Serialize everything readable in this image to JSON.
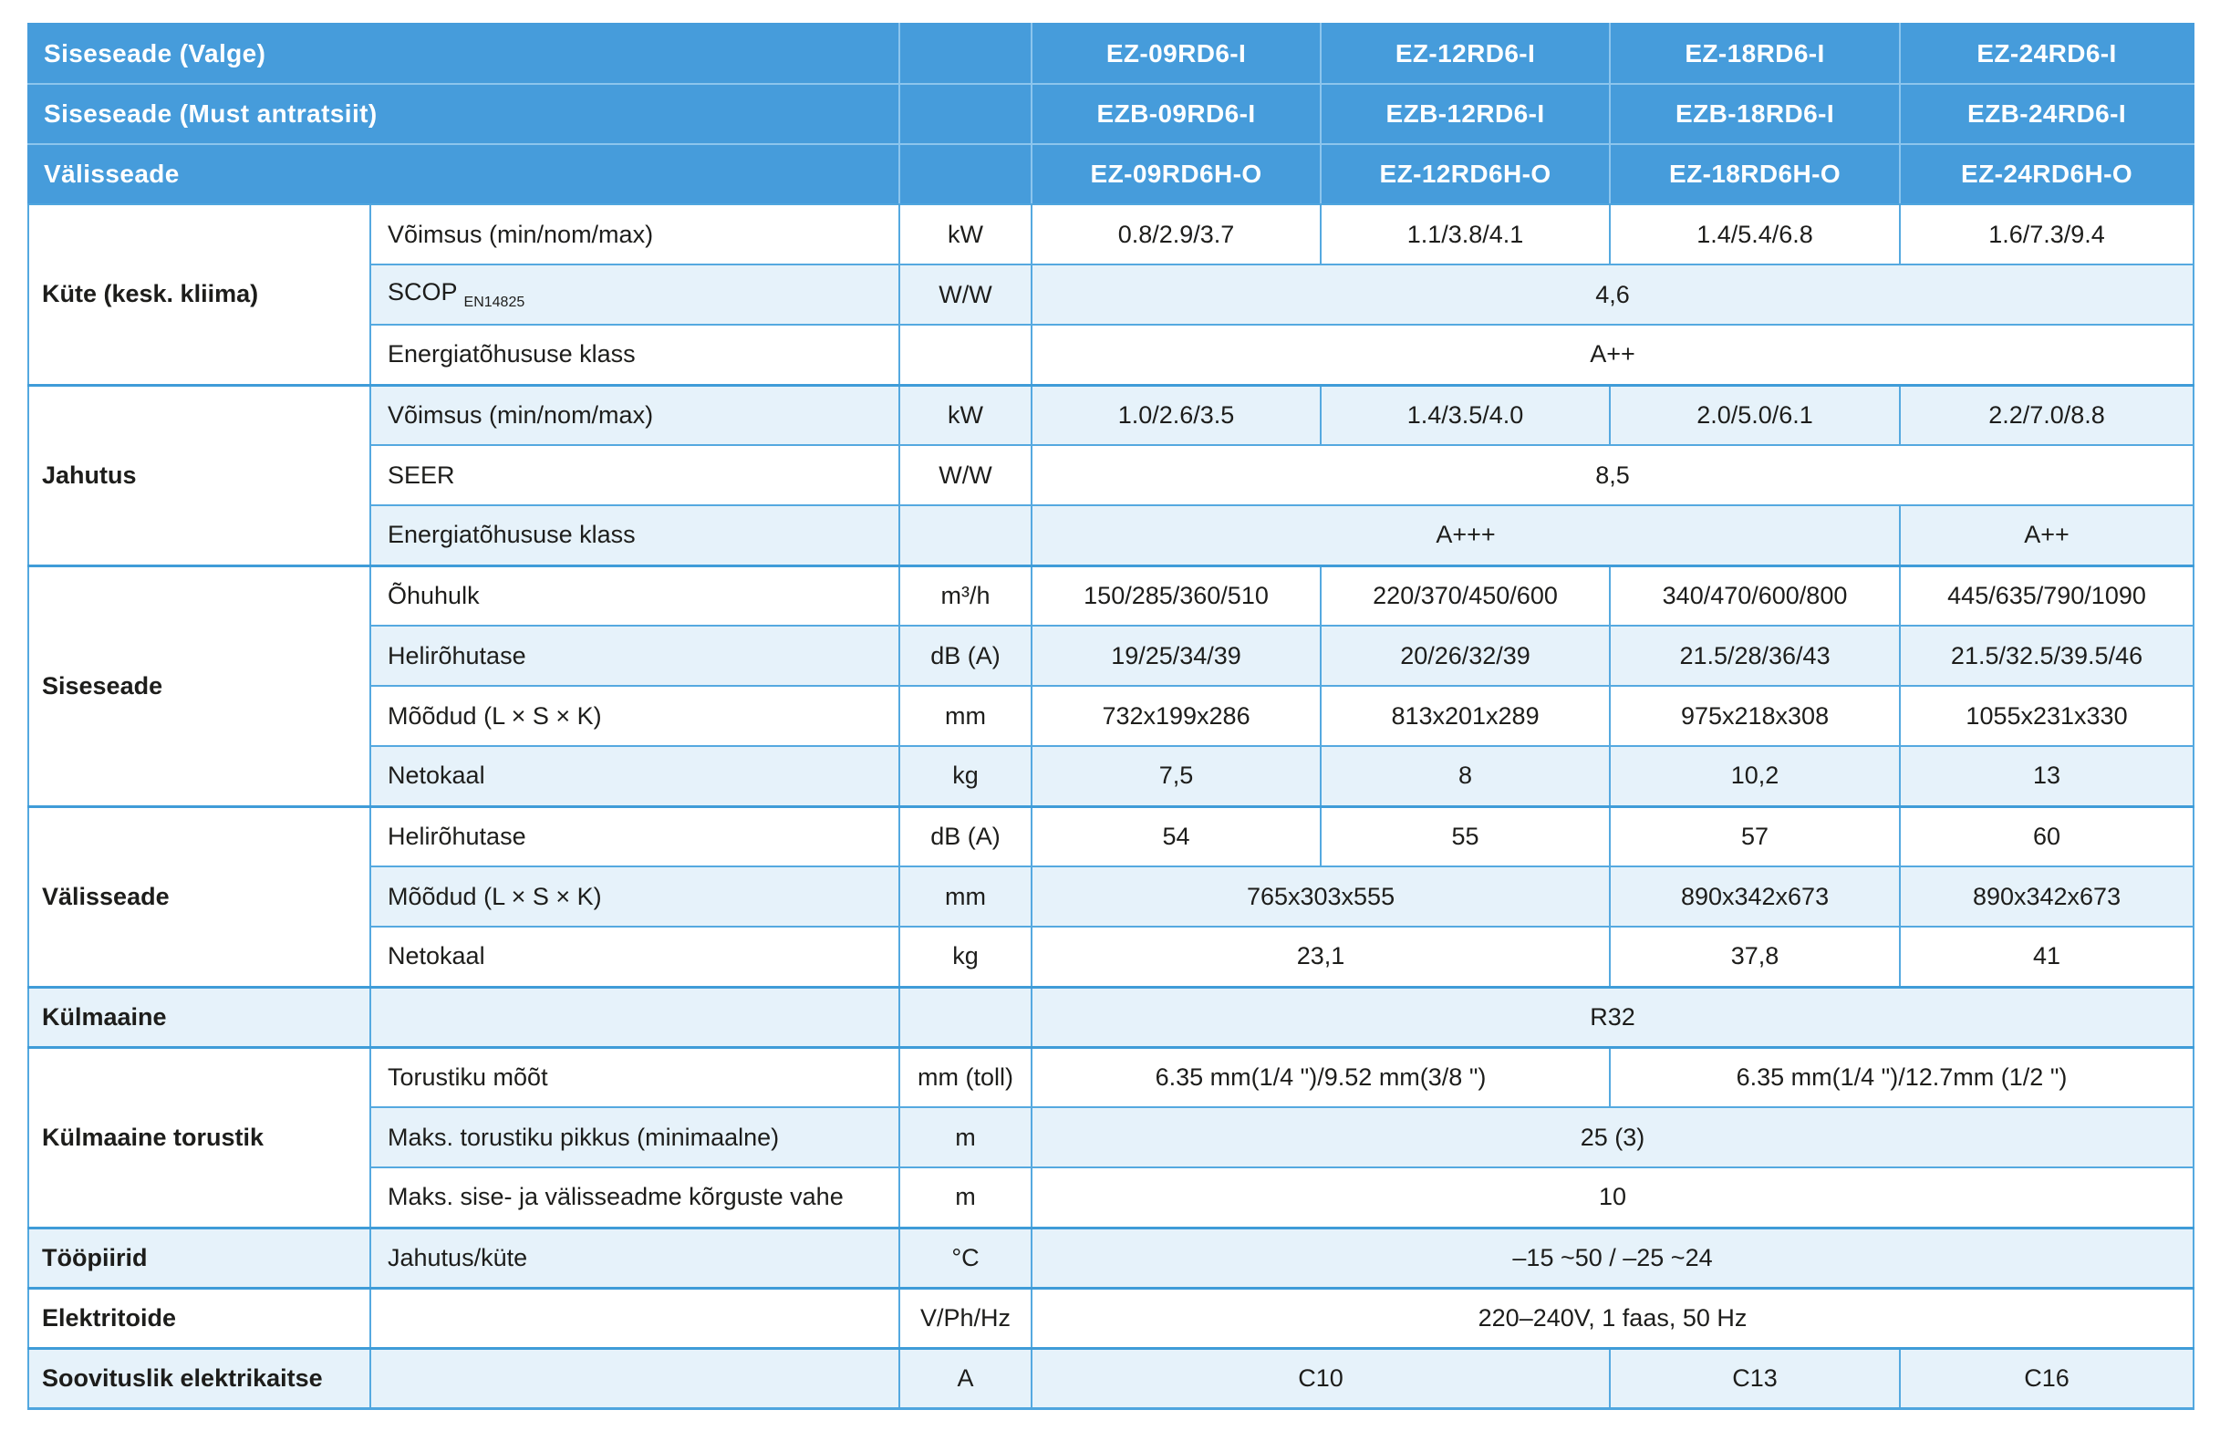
{
  "colors": {
    "header_blue": "#469CDB",
    "row_light_blue": "#E6F2FA",
    "border_blue": "#55A9E0",
    "header_divider": "#8CC5ED",
    "text": "#1d1d1b"
  },
  "header": {
    "rows": [
      {
        "label": "Siseseade (Valge)",
        "models": [
          "EZ-09RD6-I",
          "EZ-12RD6-I",
          "EZ-18RD6-I",
          "EZ-24RD6-I"
        ]
      },
      {
        "label": "Siseseade (Must antratsiit)",
        "models": [
          "EZB-09RD6-I",
          "EZB-12RD6-I",
          "EZB-18RD6-I",
          "EZB-24RD6-I"
        ]
      },
      {
        "label": "Välisseade",
        "models": [
          "EZ-09RD6H-O",
          "EZ-12RD6H-O",
          "EZ-18RD6H-O",
          "EZ-24RD6H-O"
        ]
      }
    ]
  },
  "table": {
    "rows": [
      {
        "bg": "white",
        "cells": [
          {
            "t": "Küte (kesk. kliima)",
            "type": "category",
            "rowspan": 3
          },
          {
            "t": "Võimsus (min/nom/max)",
            "type": "sublabel"
          },
          {
            "t": "kW",
            "type": "unit"
          },
          {
            "t": "0.8/2.9/3.7"
          },
          {
            "t": "1.1/3.8/4.1"
          },
          {
            "t": "1.4/5.4/6.8"
          },
          {
            "t": "1.6/7.3/9.4"
          }
        ]
      },
      {
        "bg": "blue",
        "cells": [
          {
            "t": "SCOP",
            "sub": "EN14825",
            "type": "sublabel"
          },
          {
            "t": "W/W",
            "type": "unit"
          },
          {
            "t": "4,6",
            "colspan": 4
          }
        ]
      },
      {
        "bg": "white",
        "cells": [
          {
            "t": "Energiatõhususe klass",
            "type": "sublabel"
          },
          {
            "t": "",
            "type": "unit"
          },
          {
            "t": "A++",
            "colspan": 4
          }
        ]
      },
      {
        "bg": "blue",
        "section": true,
        "cells": [
          {
            "t": "Jahutus",
            "type": "category",
            "rowspan": 3
          },
          {
            "t": "Võimsus (min/nom/max)",
            "type": "sublabel"
          },
          {
            "t": "kW",
            "type": "unit"
          },
          {
            "t": "1.0/2.6/3.5"
          },
          {
            "t": "1.4/3.5/4.0"
          },
          {
            "t": "2.0/5.0/6.1"
          },
          {
            "t": "2.2/7.0/8.8"
          }
        ]
      },
      {
        "bg": "white",
        "cells": [
          {
            "t": "SEER",
            "type": "sublabel"
          },
          {
            "t": "W/W",
            "type": "unit"
          },
          {
            "t": "8,5",
            "colspan": 4
          }
        ]
      },
      {
        "bg": "blue",
        "cells": [
          {
            "t": "Energiatõhususe klass",
            "type": "sublabel"
          },
          {
            "t": "",
            "type": "unit"
          },
          {
            "t": "A+++",
            "colspan": 3
          },
          {
            "t": "A++"
          }
        ]
      },
      {
        "bg": "white",
        "section": true,
        "cells": [
          {
            "t": "Siseseade",
            "type": "category",
            "rowspan": 4
          },
          {
            "t": "Õhuhulk",
            "type": "sublabel"
          },
          {
            "t": "m³/h",
            "type": "unit"
          },
          {
            "t": "150/285/360/510"
          },
          {
            "t": "220/370/450/600"
          },
          {
            "t": "340/470/600/800"
          },
          {
            "t": "445/635/790/1090"
          }
        ]
      },
      {
        "bg": "blue",
        "cells": [
          {
            "t": "Helirõhutase",
            "type": "sublabel"
          },
          {
            "t": "dB (A)",
            "type": "unit"
          },
          {
            "t": "19/25/34/39"
          },
          {
            "t": "20/26/32/39"
          },
          {
            "t": "21.5/28/36/43"
          },
          {
            "t": "21.5/32.5/39.5/46"
          }
        ]
      },
      {
        "bg": "white",
        "cells": [
          {
            "t": "Mõõdud (L × S × K)",
            "type": "sublabel"
          },
          {
            "t": "mm",
            "type": "unit"
          },
          {
            "t": "732x199x286"
          },
          {
            "t": "813x201x289"
          },
          {
            "t": "975x218x308"
          },
          {
            "t": "1055x231x330"
          }
        ]
      },
      {
        "bg": "blue",
        "cells": [
          {
            "t": "Netokaal",
            "type": "sublabel"
          },
          {
            "t": "kg",
            "type": "unit"
          },
          {
            "t": "7,5"
          },
          {
            "t": "8"
          },
          {
            "t": "10,2"
          },
          {
            "t": "13"
          }
        ]
      },
      {
        "bg": "white",
        "section": true,
        "cells": [
          {
            "t": "Välisseade",
            "type": "category",
            "rowspan": 3
          },
          {
            "t": "Helirõhutase",
            "type": "sublabel"
          },
          {
            "t": "dB (A)",
            "type": "unit"
          },
          {
            "t": "54"
          },
          {
            "t": "55"
          },
          {
            "t": "57"
          },
          {
            "t": "60"
          }
        ]
      },
      {
        "bg": "blue",
        "cells": [
          {
            "t": "Mõõdud (L × S × K)",
            "type": "sublabel"
          },
          {
            "t": "mm",
            "type": "unit"
          },
          {
            "t": "765x303x555",
            "colspan": 2
          },
          {
            "t": "890x342x673"
          },
          {
            "t": "890x342x673"
          }
        ]
      },
      {
        "bg": "white",
        "cells": [
          {
            "t": "Netokaal",
            "type": "sublabel"
          },
          {
            "t": "kg",
            "type": "unit"
          },
          {
            "t": "23,1",
            "colspan": 2
          },
          {
            "t": "37,8"
          },
          {
            "t": "41"
          }
        ]
      },
      {
        "bg": "blue",
        "section": true,
        "cells": [
          {
            "t": "Külmaaine",
            "type": "category"
          },
          {
            "t": "",
            "type": "sublabel"
          },
          {
            "t": "",
            "type": "unit"
          },
          {
            "t": "R32",
            "colspan": 4
          }
        ]
      },
      {
        "bg": "white",
        "section": true,
        "cells": [
          {
            "t": "Külmaaine torustik",
            "type": "category",
            "rowspan": 3
          },
          {
            "t": "Torustiku mõõt",
            "type": "sublabel"
          },
          {
            "t": "mm (toll)",
            "type": "unit"
          },
          {
            "t": "6.35 mm(1/4 \")/9.52 mm(3/8 \")",
            "colspan": 2
          },
          {
            "t": "6.35 mm(1/4 \")/12.7mm (1/2 \")",
            "colspan": 2
          }
        ]
      },
      {
        "bg": "blue",
        "cells": [
          {
            "t": "Maks. torustiku pikkus (minimaalne)",
            "type": "sublabel"
          },
          {
            "t": "m",
            "type": "unit"
          },
          {
            "t": "25 (3)",
            "colspan": 4
          }
        ]
      },
      {
        "bg": "white",
        "cells": [
          {
            "t": "Maks. sise- ja välisseadme kõrguste vahe",
            "type": "sublabel"
          },
          {
            "t": "m",
            "type": "unit"
          },
          {
            "t": "10",
            "colspan": 4
          }
        ]
      },
      {
        "bg": "blue",
        "section": true,
        "cells": [
          {
            "t": "Tööpiirid",
            "type": "category"
          },
          {
            "t": "Jahutus/küte",
            "type": "sublabel"
          },
          {
            "t": "°C",
            "type": "unit"
          },
          {
            "t": "–15 ~50 / –25 ~24",
            "colspan": 4
          }
        ]
      },
      {
        "bg": "white",
        "section": true,
        "cells": [
          {
            "t": "Elektritoide",
            "type": "category"
          },
          {
            "t": "",
            "type": "sublabel"
          },
          {
            "t": "V/Ph/Hz",
            "type": "unit"
          },
          {
            "t": "220–240V, 1 faas, 50 Hz",
            "colspan": 4
          }
        ]
      },
      {
        "bg": "blue",
        "section": true,
        "cells": [
          {
            "t": "Soovituslik elektrikaitse",
            "type": "category"
          },
          {
            "t": "",
            "type": "sublabel"
          },
          {
            "t": "A",
            "type": "unit"
          },
          {
            "t": "C10",
            "colspan": 2
          },
          {
            "t": "C13"
          },
          {
            "t": "C16"
          }
        ]
      }
    ]
  }
}
